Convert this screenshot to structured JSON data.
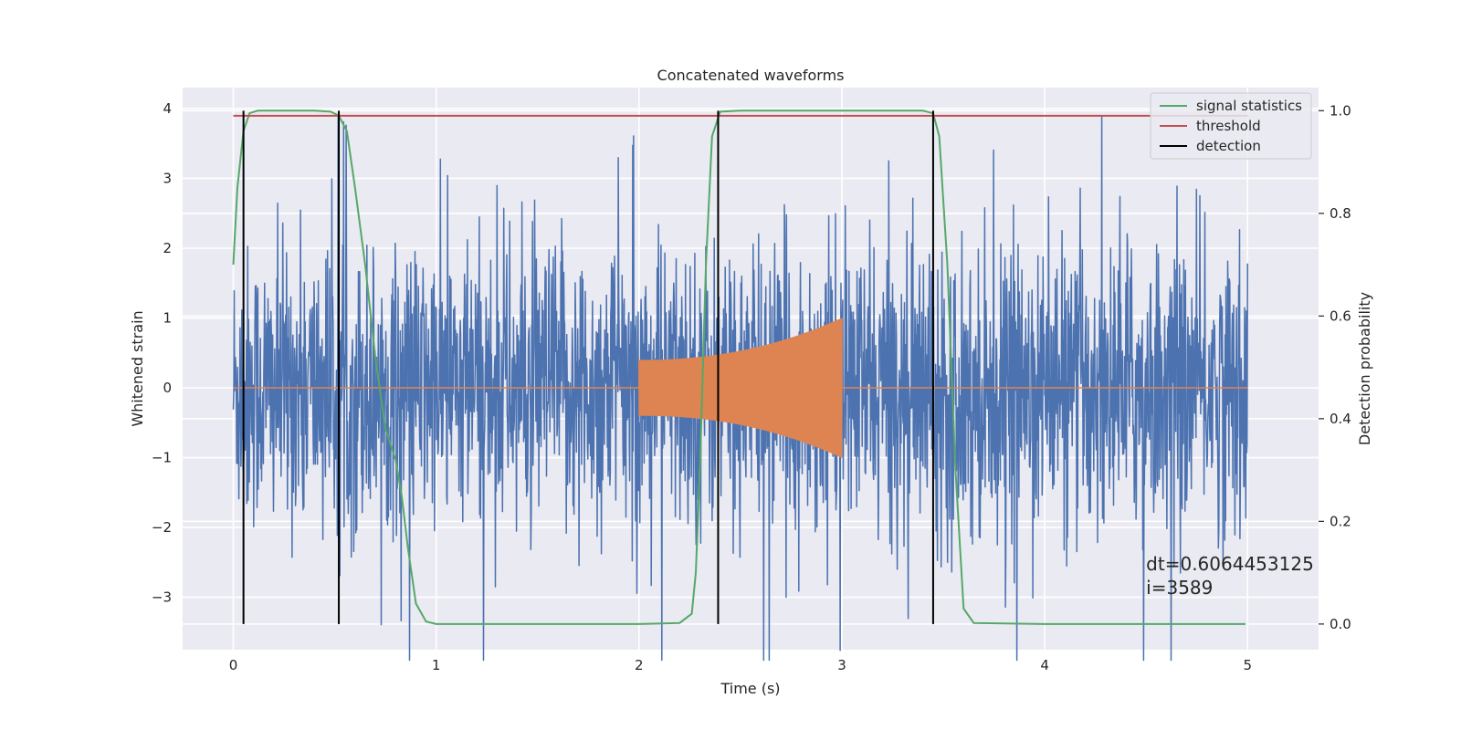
{
  "chart_data": {
    "type": "line",
    "title": "Concatenated waveforms",
    "xlabel": "Time (s)",
    "ylabel": "Whitened strain",
    "ylabel_right": "Detection probability",
    "xlim": [
      -0.25,
      5.35
    ],
    "ylim": [
      -3.75,
      4.3
    ],
    "ylim_right": [
      -0.05,
      1.045
    ],
    "xticks": [
      0,
      1,
      2,
      3,
      4,
      5
    ],
    "yticks": [
      -3,
      -2,
      -1,
      0,
      1,
      2,
      3,
      4
    ],
    "yticks_right": [
      0.0,
      0.2,
      0.4,
      0.6,
      0.8,
      1.0
    ],
    "grid": true,
    "legend_position": "top-right",
    "legend": [
      {
        "label": "signal statistics",
        "color": "#55a868"
      },
      {
        "label": "threshold",
        "color": "#c44e52"
      },
      {
        "label": "detection",
        "color": "#000000"
      }
    ],
    "series": [
      {
        "role": "noise",
        "color": "#4c72b0",
        "x_range": [
          0,
          5
        ],
        "amplitude_typical": 1.0,
        "amplitude_peak": 3.9
      },
      {
        "role": "injected-chirp",
        "color": "#dd8452",
        "x_range": [
          2,
          3
        ],
        "start_amplitude": 0.4,
        "end_amplitude": 1.0,
        "outside_value": 0.0
      },
      {
        "name": "signal statistics",
        "axis": "right",
        "color": "#55a868",
        "x": [
          0.0,
          0.02,
          0.05,
          0.08,
          0.12,
          0.2,
          0.3,
          0.4,
          0.48,
          0.52,
          0.56,
          0.6,
          0.65,
          0.7,
          0.75,
          0.8,
          0.83,
          0.86,
          0.9,
          0.95,
          1.0,
          1.5,
          2.0,
          2.2,
          2.26,
          2.28,
          2.3,
          2.33,
          2.36,
          2.4,
          2.5,
          3.0,
          3.4,
          3.45,
          3.48,
          3.52,
          3.56,
          3.6,
          3.65,
          4.0,
          4.5,
          4.99
        ],
        "values": [
          0.7,
          0.85,
          0.96,
          0.995,
          1.0,
          1.0,
          1.0,
          1.0,
          0.998,
          0.99,
          0.96,
          0.85,
          0.7,
          0.52,
          0.38,
          0.32,
          0.25,
          0.15,
          0.04,
          0.005,
          0.0,
          0.0,
          0.0,
          0.002,
          0.02,
          0.1,
          0.3,
          0.7,
          0.95,
          0.998,
          1.0,
          1.0,
          1.0,
          0.995,
          0.95,
          0.7,
          0.3,
          0.03,
          0.002,
          0.0,
          0.0,
          0.0
        ]
      },
      {
        "name": "threshold",
        "axis": "right",
        "color": "#c44e52",
        "x": [
          0,
          5
        ],
        "values": [
          0.99,
          0.99
        ]
      }
    ],
    "detections": [
      0.05,
      0.52,
      2.39,
      3.45
    ],
    "detection_range_right": [
      0.0,
      1.0
    ],
    "annotation": {
      "line1": "dt=0.6064453125",
      "line2": " i=3589",
      "x": 4.5,
      "y": -2.95
    }
  }
}
